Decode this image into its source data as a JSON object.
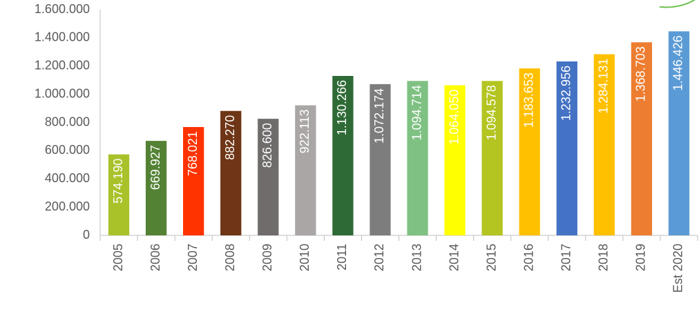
{
  "chart_data": {
    "type": "bar",
    "categories": [
      "2005",
      "2006",
      "2007",
      "2008",
      "2009",
      "2010",
      "2011",
      "2012",
      "2013",
      "2014",
      "2015",
      "2016",
      "2017",
      "2018",
      "2019",
      "Est 2020"
    ],
    "values": [
      574190,
      669927,
      768021,
      882270,
      826600,
      922113,
      1130266,
      1072174,
      1094714,
      1064050,
      1094578,
      1183653,
      1232956,
      1284131,
      1368703,
      1446426
    ],
    "value_labels": [
      "574.190",
      "669.927",
      "768.021",
      "882.270",
      "826.600",
      "922.113",
      "1.130.266",
      "1.072.174",
      "1.094.714",
      "1.064.050",
      "1.094.578",
      "1.183.653",
      "1.232.956",
      "1.284.131",
      "1.368.703",
      "1.446.426"
    ],
    "colors": [
      "#a9c22a",
      "#548235",
      "#ff3300",
      "#6e3616",
      "#706c6c",
      "#aba6a6",
      "#2e6a35",
      "#7d7d7d",
      "#7fc183",
      "#ffff00",
      "#b4c421",
      "#ffc000",
      "#4472c4",
      "#ffc000",
      "#ed7d31",
      "#5b9bd5"
    ],
    "ylim": [
      0,
      1600000
    ],
    "yticks": [
      0,
      {
        "value": 200000,
        "label": "200.000"
      },
      {
        "value": 400000,
        "label": "400.000"
      },
      {
        "value": 600000,
        "label": "600.000"
      },
      {
        "value": 800000,
        "label": "800.000"
      },
      {
        "value": 1000000,
        "label": "1.000.000"
      },
      {
        "value": 1200000,
        "label": "1.200.000"
      },
      {
        "value": 1400000,
        "label": "1.400.000"
      },
      {
        "value": 1600000,
        "label": "1.600.000"
      }
    ],
    "grid": false
  }
}
